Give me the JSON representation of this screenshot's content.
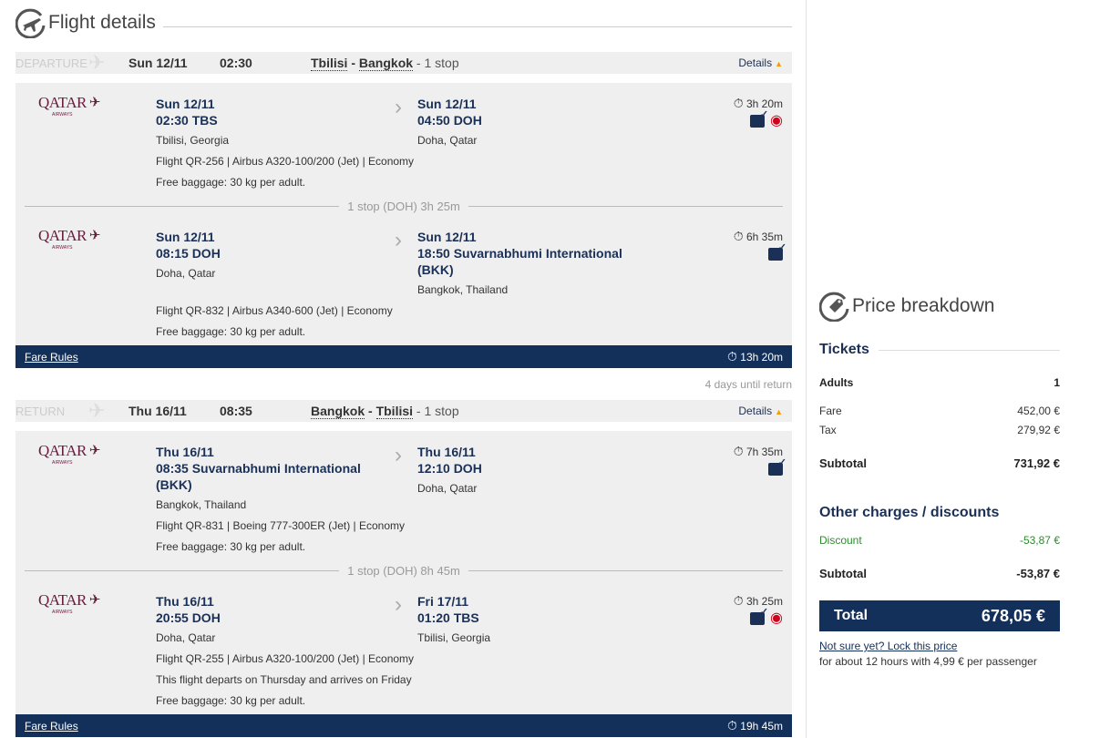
{
  "flight_details": {
    "title": "Flight details",
    "icon": "plane-circle-icon"
  },
  "legs": [
    {
      "label": "DEPARTURE",
      "date": "Sun 12/11",
      "time": "02:30",
      "from": "Tbilisi",
      "to": "Bangkok",
      "stops": "- 1 stop",
      "details": "Details",
      "fare_rules": "Fare Rules",
      "total_duration": "13h 20m",
      "segments": [
        {
          "airline": "QATAR",
          "dep_date": "Sun 12/11",
          "dep_time": "02:30 TBS",
          "dep_city": "Tbilisi, Georgia",
          "arr_date": "Sun 12/11",
          "arr_time": "04:50 DOH",
          "arr_city": "Doha, Qatar",
          "info": [
            "Flight QR-256 |  Airbus A320-100/200 (Jet) |  Economy",
            "Free baggage: 30 kg per adult."
          ],
          "duration": "3h 20m",
          "eye": true
        },
        {
          "airline": "QATAR",
          "dep_date": "Sun 12/11",
          "dep_time": "08:15 DOH",
          "dep_city": "Doha, Qatar",
          "arr_date": "Sun 12/11",
          "arr_time": "18:50 Suvarnabhumi International (BKK)",
          "arr_city": "Bangkok, Thailand",
          "info": [
            "Flight QR-832 |  Airbus A340-600 (Jet) |  Economy",
            "Free baggage: 30 kg per adult."
          ],
          "duration": "6h 35m",
          "eye": false
        }
      ],
      "stop": "1 stop (DOH) 3h 25m"
    },
    {
      "label": "RETURN",
      "date": "Thu 16/11",
      "time": "08:35",
      "from": "Bangkok",
      "to": "Tbilisi",
      "stops": "- 1 stop",
      "details": "Details",
      "fare_rules": "Fare Rules",
      "total_duration": "19h 45m",
      "segments": [
        {
          "airline": "QATAR",
          "dep_date": "Thu 16/11",
          "dep_time": "08:35 Suvarnabhumi International (BKK)",
          "dep_city": "Bangkok, Thailand",
          "arr_date": "Thu 16/11",
          "arr_time": "12:10 DOH",
          "arr_city": "Doha, Qatar",
          "info": [
            "Flight QR-831 |  Boeing 777-300ER (Jet) |  Economy",
            "Free baggage: 30 kg per adult."
          ],
          "duration": "7h 35m",
          "eye": false
        },
        {
          "airline": "QATAR",
          "dep_date": "Thu 16/11",
          "dep_time": "20:55 DOH",
          "dep_city": "Doha, Qatar",
          "arr_date": "Fri 17/11",
          "arr_time": "01:20 TBS",
          "arr_city": "Tbilisi, Georgia",
          "info": [
            "Flight QR-255 |  Airbus A320-100/200 (Jet) |  Economy",
            "This flight departs on Thursday and arrives on Friday",
            "Free baggage: 30 kg per adult."
          ],
          "duration": "3h 25m",
          "eye": true
        }
      ],
      "stop": "1 stop (DOH) 8h 45m"
    }
  ],
  "until_return": "4 days until return",
  "price": {
    "title": "Price breakdown",
    "tickets": "Tickets",
    "adults_label": "Adults",
    "adults": "1",
    "fare_label": "Fare",
    "fare": "452,00 €",
    "tax_label": "Tax",
    "tax": "279,92 €",
    "subtotal_label": "Subtotal",
    "subtotal": "731,92 €",
    "other": "Other charges / discounts",
    "discount_label": "Discount",
    "discount": "-53,87 €",
    "subtotal2": "-53,87 €",
    "total_label": "Total",
    "total": "678,05 €",
    "lock_link": "Not sure yet? Lock this price",
    "lock_note": "for about 12 hours with 4,99 € per passenger"
  },
  "colors": {
    "navy": "#13305a",
    "accent": "#f39c12",
    "discount": "#2e8b2e",
    "eye": "#d0021b"
  }
}
